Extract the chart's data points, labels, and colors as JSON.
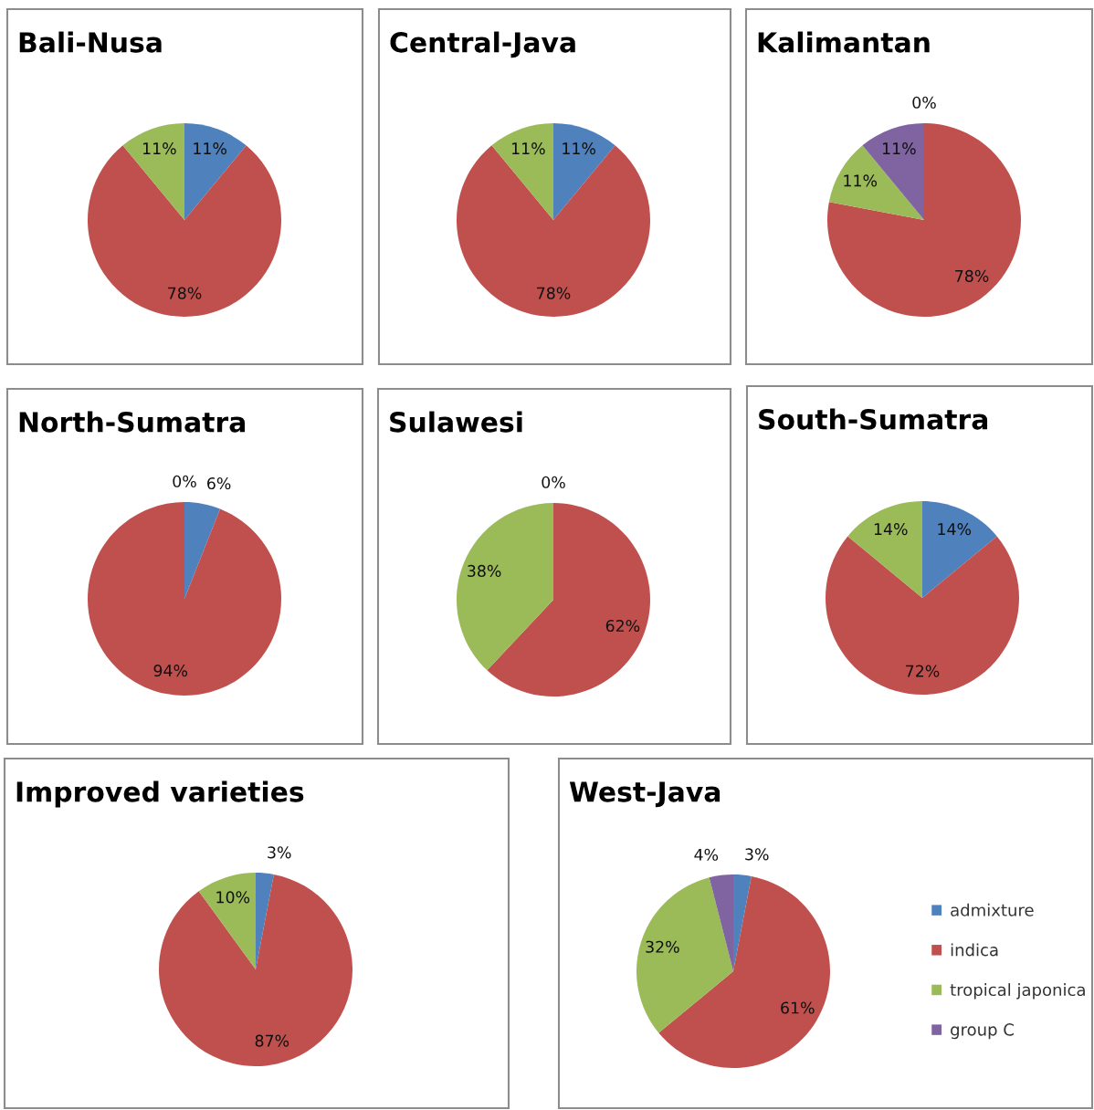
{
  "chart_data": [
    {
      "type": "pie",
      "title": "Bali-Nusa",
      "categories": [
        null,
        null,
        null
      ],
      "values": [
        11,
        78,
        11
      ],
      "colors": [
        "#4f81bd",
        "#c0504d",
        "#9bbb59"
      ],
      "value_labels": [
        "11%",
        "78%",
        "11%"
      ]
    },
    {
      "type": "pie",
      "title": "Central-Java",
      "categories": [
        null,
        null,
        null
      ],
      "values": [
        11,
        78,
        11
      ],
      "colors": [
        "#4f81bd",
        "#c0504d",
        "#9bbb59"
      ],
      "value_labels": [
        "11%",
        "78%",
        "11%"
      ]
    },
    {
      "type": "pie",
      "title": "Kalimantan",
      "categories": [
        null,
        null,
        null,
        null
      ],
      "values": [
        0,
        78,
        11,
        11
      ],
      "colors": [
        "#4f81bd",
        "#c0504d",
        "#9bbb59",
        "#8064a2"
      ],
      "value_labels": [
        "0%",
        "78%",
        "11%",
        "11%"
      ]
    },
    {
      "type": "pie",
      "title": "North-Sumatra",
      "categories": [
        null,
        null,
        null
      ],
      "values": [
        6,
        94,
        0
      ],
      "colors": [
        "#4f81bd",
        "#c0504d",
        "#9bbb59"
      ],
      "value_labels": [
        "6%",
        "94%",
        "0%"
      ]
    },
    {
      "type": "pie",
      "title": "Sulawesi",
      "categories": [
        null,
        null,
        null
      ],
      "values": [
        0,
        62,
        38
      ],
      "colors": [
        "#4f81bd",
        "#c0504d",
        "#9bbb59"
      ],
      "value_labels": [
        "0%",
        "62%",
        "38%"
      ]
    },
    {
      "type": "pie",
      "title": "South-Sumatra",
      "categories": [
        null,
        null,
        null
      ],
      "values": [
        14,
        72,
        14
      ],
      "colors": [
        "#4f81bd",
        "#c0504d",
        "#9bbb59"
      ],
      "value_labels": [
        "14%",
        "72%",
        "14%"
      ]
    },
    {
      "type": "pie",
      "title": "Improved varieties",
      "categories": [
        null,
        null,
        null
      ],
      "values": [
        3,
        87,
        10
      ],
      "colors": [
        "#4f81bd",
        "#c0504d",
        "#9bbb59"
      ],
      "value_labels": [
        "3%",
        "87%",
        "10%"
      ]
    },
    {
      "type": "pie",
      "title": "West-Java",
      "categories": [
        "admixture",
        "indica",
        "tropical japonica",
        "group C"
      ],
      "values": [
        3,
        61,
        32,
        4
      ],
      "colors": [
        "#4f81bd",
        "#c0504d",
        "#9bbb59",
        "#8064a2"
      ],
      "value_labels": [
        "3%",
        "61%",
        "32%",
        "4%"
      ],
      "legend": "right"
    }
  ]
}
